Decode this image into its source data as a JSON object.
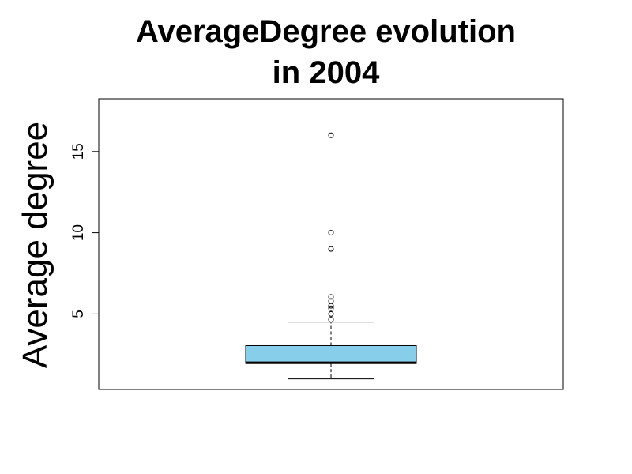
{
  "chart_data": {
    "type": "boxplot",
    "title_lines": [
      "AverageDegree evolution",
      "in 2004"
    ],
    "xlabel": "",
    "ylabel": "Average degree",
    "ylim": [
      0.35,
      18.25
    ],
    "yticks": [
      5,
      10,
      15
    ],
    "y_tick_labels": [
      "5",
      "10",
      "15"
    ],
    "grid": false,
    "legend": "none",
    "box_fill": "#87ceeb",
    "box": {
      "lower_whisker": 1.0,
      "q1": 1.95,
      "median": 2.0,
      "q3": 3.05,
      "upper_whisker": 4.5
    },
    "outliers": [
      4.65,
      5.0,
      5.35,
      5.5,
      5.8,
      6.05,
      9.0,
      10.0,
      16.0
    ]
  }
}
